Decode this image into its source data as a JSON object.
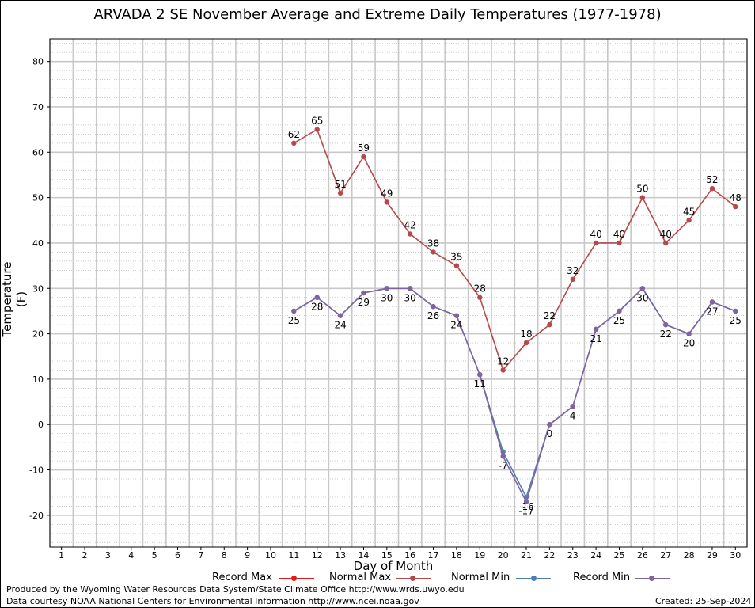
{
  "chart_data": {
    "type": "line",
    "title": "ARVADA 2 SE November Average and Extreme Daily Temperatures (1977-1978)",
    "xlabel": "Day of Month",
    "ylabel": "Temperature (F)",
    "x_ticks": [
      "1",
      "2",
      "3",
      "4",
      "5",
      "6",
      "7",
      "8",
      "9",
      "10",
      "11",
      "12",
      "13",
      "14",
      "15",
      "16",
      "17",
      "18",
      "19",
      "20",
      "21",
      "22",
      "23",
      "24",
      "25",
      "26",
      "27",
      "28",
      "29",
      "30"
    ],
    "y_ticks": [
      "-20",
      "-10",
      "0",
      "10",
      "20",
      "30",
      "40",
      "50",
      "60",
      "70",
      "80"
    ],
    "xlim": [
      0.5,
      30.5
    ],
    "ylim": [
      -27,
      85
    ],
    "grid": true,
    "legend_position": "bottom",
    "series": [
      {
        "name": "Record Max",
        "color": "#e41a1c",
        "x": [],
        "values": []
      },
      {
        "name": "Normal Max",
        "color": "#b5494c",
        "x": [
          11,
          12,
          13,
          14,
          15,
          16,
          17,
          18,
          19,
          20,
          21,
          22,
          23,
          24,
          25,
          26,
          27,
          28,
          29,
          30
        ],
        "values": [
          62,
          65,
          51,
          59,
          49,
          42,
          38,
          35,
          28,
          12,
          18,
          22,
          32,
          40,
          40,
          50,
          40,
          45,
          52,
          48
        ],
        "labels": [
          "62",
          "65",
          "51",
          "59",
          "49",
          "42",
          "38",
          "35",
          "28",
          "12",
          "18",
          "22",
          "32",
          "40",
          "40",
          "50",
          "40",
          "45",
          "52",
          "48"
        ]
      },
      {
        "name": "Normal Min",
        "color": "#4f7fb0",
        "x": [
          11,
          12,
          13,
          14,
          15,
          16,
          17,
          18,
          19,
          20,
          21,
          22,
          23,
          24,
          25,
          26,
          27,
          28,
          29,
          30
        ],
        "values": [
          25,
          28,
          24,
          29,
          30,
          30,
          26,
          24,
          11,
          -6,
          -16,
          0,
          4,
          21,
          25,
          30,
          22,
          20,
          27,
          25
        ],
        "labels": [
          "25",
          "28",
          "24",
          "29",
          "30",
          "30",
          "26",
          "24",
          "11",
          "",
          "-16",
          "0",
          "4",
          "21",
          "25",
          "30",
          "22",
          "20",
          "27",
          "25"
        ]
      },
      {
        "name": "Record Min",
        "color": "#8064a2",
        "x": [
          11,
          12,
          13,
          14,
          15,
          16,
          17,
          18,
          19,
          20,
          21,
          22,
          23,
          24,
          25,
          26,
          27,
          28,
          29,
          30
        ],
        "values": [
          25,
          28,
          24,
          29,
          30,
          30,
          26,
          24,
          11,
          -7,
          -17,
          0,
          4,
          21,
          25,
          30,
          22,
          20,
          27,
          25
        ],
        "labels": [
          "",
          "",
          "",
          "",
          "",
          "",
          "",
          "",
          "",
          "-7",
          "-17",
          "",
          "",
          "",
          "",
          "",
          "",
          "",
          "",
          ""
        ]
      }
    ]
  },
  "footer": {
    "line1": "Produced by the Wyoming Water Resources Data System/State Climate Office http://www.wrds.uwyo.edu",
    "line2": "Data courtesy NOAA National Centers for Environmental Information http://www.ncei.noaa.gov",
    "created": "Created:  25-Sep-2024"
  }
}
